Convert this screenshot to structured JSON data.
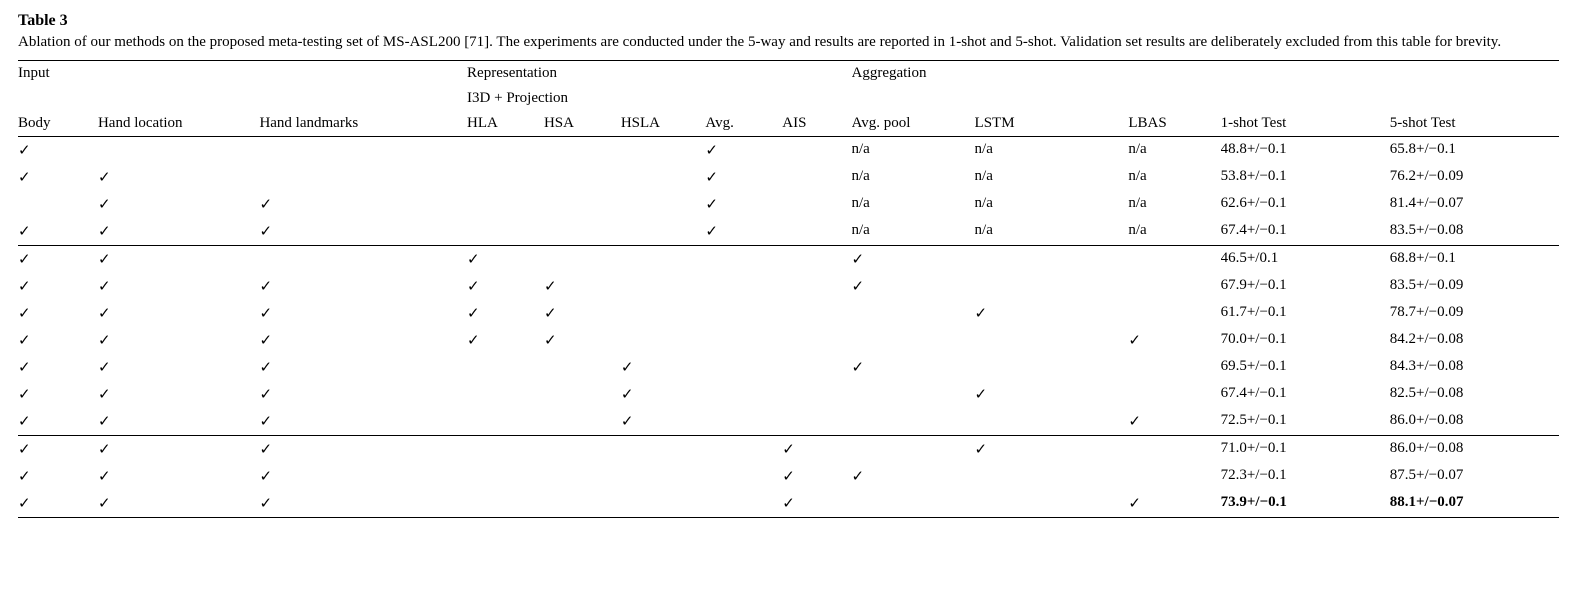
{
  "table_label": "Table 3",
  "caption": "Ablation of our methods on the proposed meta-testing set of MS-ASL200 [71]. The experiments are conducted under the 5-way and results are reported in 1-shot and 5-shot. Validation set results are deliberately excluded from this table for brevity.",
  "groups": {
    "input": "Input",
    "representation": "Representation",
    "rep_sub": "I3D + Projection",
    "aggregation": "Aggregation"
  },
  "cols": {
    "body": "Body",
    "hand_location": "Hand location",
    "hand_landmarks": "Hand landmarks",
    "hla": "HLA",
    "hsa": "HSA",
    "hsla": "HSLA",
    "avg": "Avg.",
    "ais": "AIS",
    "avg_pool": "Avg. pool",
    "lstm": "LSTM",
    "lbas": "LBAS",
    "shot1": "1-shot Test",
    "shot5": "5-shot Test"
  },
  "check": "✓",
  "na": "n/a",
  "rows": [
    {
      "sec": 0,
      "body": true,
      "hloc": false,
      "hland": false,
      "hla": false,
      "hsa": false,
      "hsla": false,
      "avg": true,
      "ais": false,
      "apool": "n/a",
      "lstm": "n/a",
      "lbas": "n/a",
      "s1": "48.8+/−0.1",
      "s5": "65.8+/−0.1"
    },
    {
      "sec": 0,
      "body": true,
      "hloc": true,
      "hland": false,
      "hla": false,
      "hsa": false,
      "hsla": false,
      "avg": true,
      "ais": false,
      "apool": "n/a",
      "lstm": "n/a",
      "lbas": "n/a",
      "s1": "53.8+/−0.1",
      "s5": "76.2+/−0.09"
    },
    {
      "sec": 0,
      "body": false,
      "hloc": true,
      "hland": true,
      "hla": false,
      "hsa": false,
      "hsla": false,
      "avg": true,
      "ais": false,
      "apool": "n/a",
      "lstm": "n/a",
      "lbas": "n/a",
      "s1": "62.6+/−0.1",
      "s5": "81.4+/−0.07"
    },
    {
      "sec": 0,
      "body": true,
      "hloc": true,
      "hland": true,
      "hla": false,
      "hsa": false,
      "hsla": false,
      "avg": true,
      "ais": false,
      "apool": "n/a",
      "lstm": "n/a",
      "lbas": "n/a",
      "s1": "67.4+/−0.1",
      "s5": "83.5+/−0.08"
    },
    {
      "sec": 1,
      "body": true,
      "hloc": true,
      "hland": false,
      "hla": true,
      "hsa": false,
      "hsla": false,
      "avg": false,
      "ais": false,
      "apool": true,
      "lstm": false,
      "lbas": false,
      "s1": "46.5+/0.1",
      "s5": "68.8+/−0.1"
    },
    {
      "sec": 1,
      "body": true,
      "hloc": true,
      "hland": true,
      "hla": true,
      "hsa": true,
      "hsla": false,
      "avg": false,
      "ais": false,
      "apool": true,
      "lstm": false,
      "lbas": false,
      "s1": "67.9+/−0.1",
      "s5": "83.5+/−0.09"
    },
    {
      "sec": 1,
      "body": true,
      "hloc": true,
      "hland": true,
      "hla": true,
      "hsa": true,
      "hsla": false,
      "avg": false,
      "ais": false,
      "apool": false,
      "lstm": true,
      "lbas": false,
      "s1": "61.7+/−0.1",
      "s5": "78.7+/−0.09"
    },
    {
      "sec": 1,
      "body": true,
      "hloc": true,
      "hland": true,
      "hla": true,
      "hsa": true,
      "hsla": false,
      "avg": false,
      "ais": false,
      "apool": false,
      "lstm": false,
      "lbas": true,
      "s1": "70.0+/−0.1",
      "s5": "84.2+/−0.08"
    },
    {
      "sec": 1,
      "body": true,
      "hloc": true,
      "hland": true,
      "hla": false,
      "hsa": false,
      "hsla": true,
      "avg": false,
      "ais": false,
      "apool": true,
      "lstm": false,
      "lbas": false,
      "s1": "69.5+/−0.1",
      "s5": "84.3+/−0.08"
    },
    {
      "sec": 1,
      "body": true,
      "hloc": true,
      "hland": true,
      "hla": false,
      "hsa": false,
      "hsla": true,
      "avg": false,
      "ais": false,
      "apool": false,
      "lstm": true,
      "lbas": false,
      "s1": "67.4+/−0.1",
      "s5": "82.5+/−0.08"
    },
    {
      "sec": 1,
      "body": true,
      "hloc": true,
      "hland": true,
      "hla": false,
      "hsa": false,
      "hsla": true,
      "avg": false,
      "ais": false,
      "apool": false,
      "lstm": false,
      "lbas": true,
      "s1": "72.5+/−0.1",
      "s5": "86.0+/−0.08"
    },
    {
      "sec": 2,
      "body": true,
      "hloc": true,
      "hland": true,
      "hla": false,
      "hsa": false,
      "hsla": false,
      "avg": false,
      "ais": true,
      "apool": false,
      "lstm": true,
      "lbas": false,
      "s1": "71.0+/−0.1",
      "s5": "86.0+/−0.08"
    },
    {
      "sec": 2,
      "body": true,
      "hloc": true,
      "hland": true,
      "hla": false,
      "hsa": false,
      "hsla": false,
      "avg": false,
      "ais": true,
      "apool": true,
      "lstm": false,
      "lbas": false,
      "s1": "72.3+/−0.1",
      "s5": "87.5+/−0.07"
    },
    {
      "sec": 2,
      "body": true,
      "hloc": true,
      "hland": true,
      "hla": false,
      "hsa": false,
      "hsla": false,
      "avg": false,
      "ais": true,
      "apool": false,
      "lstm": false,
      "lbas": true,
      "s1": "73.9+/−0.1",
      "s5": "88.1+/−0.07",
      "bold": true
    }
  ]
}
